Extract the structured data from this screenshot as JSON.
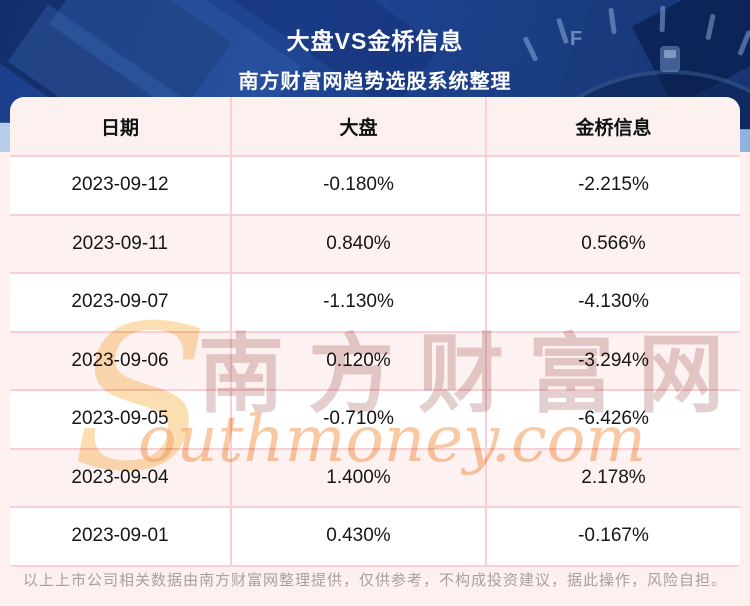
{
  "header": {
    "title": "大盘VS金桥信息",
    "subtitle": "南方财富网趋势选股系统整理"
  },
  "table": {
    "columns": [
      "日期",
      "大盘",
      "金桥信息"
    ]
  },
  "chart_data": {
    "type": "table",
    "title": "大盘VS金桥信息",
    "subtitle": "南方财富网趋势选股系统整理",
    "columns": [
      "日期",
      "大盘",
      "金桥信息"
    ],
    "rows": [
      [
        "2023-09-12",
        "-0.180%",
        "-2.215%"
      ],
      [
        "2023-09-11",
        "0.840%",
        "0.566%"
      ],
      [
        "2023-09-07",
        "-1.130%",
        "-4.130%"
      ],
      [
        "2023-09-06",
        "0.120%",
        "-3.294%"
      ],
      [
        "2023-09-05",
        "-0.710%",
        "-6.426%"
      ],
      [
        "2023-09-04",
        "1.400%",
        "2.178%"
      ],
      [
        "2023-09-01",
        "0.430%",
        "-0.167%"
      ]
    ]
  },
  "watermark": {
    "s": "S",
    "cn": "南方财富网",
    "en": "outhmoney.com"
  },
  "footer": {
    "disclaimer": "以上上市公司相关数据由南方财富网整理提供，仅供参考，不构成投资建议，据此操作，风险自担。"
  },
  "gauge": {
    "f_label": "F"
  },
  "colors": {
    "hero_blue": "#1c3e8a",
    "hero_blue_dark": "#0f2a5e",
    "hero_stripe": "#a9c3e3",
    "page_pink": "#fdf0ee",
    "row_pink": "#fdf2f1",
    "row_white": "#ffffff",
    "border_pink": "#f9ced6",
    "text_dark": "#161616",
    "footer_gray": "#a8a0a0",
    "watermark_cn": "#c99f9f",
    "watermark_orange": "#f4ad72"
  }
}
